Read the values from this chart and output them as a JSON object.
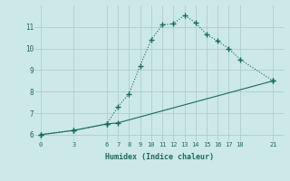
{
  "line1_x": [
    0,
    3,
    6,
    7,
    8,
    9,
    10,
    11,
    12,
    13,
    14,
    15,
    16,
    17,
    18,
    21
  ],
  "line1_y": [
    6.0,
    6.2,
    6.5,
    7.3,
    7.9,
    9.2,
    10.4,
    11.1,
    11.15,
    11.55,
    11.2,
    10.65,
    10.35,
    10.0,
    9.5,
    8.5
  ],
  "line2_x": [
    0,
    3,
    6,
    7,
    21
  ],
  "line2_y": [
    6.0,
    6.2,
    6.5,
    6.55,
    8.5
  ],
  "line_color": "#1a6b5a",
  "bg_color": "#cce8e8",
  "grid_color": "#b0cccc",
  "xlabel": "Humidex (Indice chaleur)",
  "xticks": [
    0,
    3,
    6,
    7,
    8,
    9,
    10,
    11,
    12,
    13,
    14,
    15,
    16,
    17,
    18,
    21
  ],
  "yticks": [
    6,
    7,
    8,
    9,
    10,
    11
  ],
  "ylim": [
    5.7,
    12.0
  ],
  "xlim": [
    -0.5,
    22.0
  ]
}
